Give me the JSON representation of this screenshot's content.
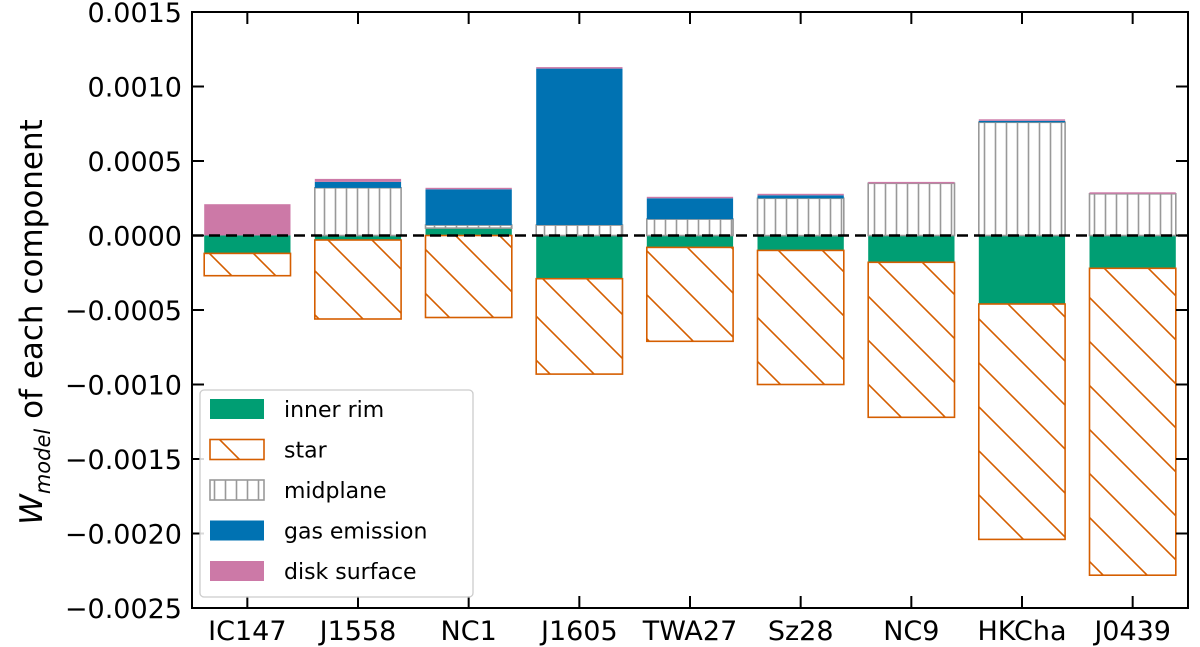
{
  "chart_data": {
    "type": "bar",
    "stacking": "positive and negative components stacked from zero",
    "ylabel_main": "W",
    "ylabel_sub": "model",
    "ylabel_rest": " of each component",
    "xlabel": "",
    "ylim": [
      -0.0025,
      0.0015
    ],
    "yticks": [
      0.0015,
      0.001,
      0.0005,
      0.0,
      -0.0005,
      -0.001,
      -0.0015,
      -0.002,
      -0.0025
    ],
    "ytick_labels": [
      "0.0015",
      "0.0010",
      "0.0005",
      "0.0000",
      "−0.0005",
      "−0.0010",
      "−0.0015",
      "−0.0020",
      "−0.0025"
    ],
    "zero_line": "dashed",
    "legend_position": "lower-left",
    "categories": [
      "IC147",
      "J1558",
      "NC1",
      "J1605",
      "TWA27",
      "Sz28",
      "NC9",
      "HKCha",
      "J0439"
    ],
    "series": [
      {
        "name": "inner rim",
        "key": "inner_rim",
        "color": "#009E73",
        "style": "solid",
        "values": [
          -0.00012,
          -3e-05,
          5e-05,
          -0.00029,
          -8e-05,
          -0.0001,
          -0.00018,
          -0.00046,
          -0.00022
        ]
      },
      {
        "name": "star",
        "key": "star",
        "color": "#D55E00",
        "style": "diagonal-hatch",
        "values": [
          -0.00015,
          -0.00053,
          -0.00055,
          -0.00064,
          -0.00063,
          -0.0009,
          -0.00104,
          -0.00158,
          -0.00206
        ]
      },
      {
        "name": "midplane",
        "key": "midplane",
        "color": "#999999",
        "style": "vertical-hatch",
        "values": [
          0.0,
          0.00032,
          2e-05,
          7e-05,
          0.00011,
          0.00025,
          0.00035,
          0.00076,
          0.00028
        ]
      },
      {
        "name": "gas emission",
        "key": "gas_emission",
        "color": "#0072B2",
        "style": "solid",
        "values": [
          0.0,
          4e-05,
          0.00024,
          0.00105,
          0.00014,
          2e-05,
          0.0,
          1e-05,
          0.0
        ]
      },
      {
        "name": "disk surface",
        "key": "disk_surface",
        "color": "#CC79A7",
        "style": "solid",
        "values": [
          0.00021,
          2e-05,
          1e-05,
          1e-05,
          1e-05,
          1e-05,
          1e-05,
          1e-05,
          1e-05
        ]
      }
    ]
  }
}
